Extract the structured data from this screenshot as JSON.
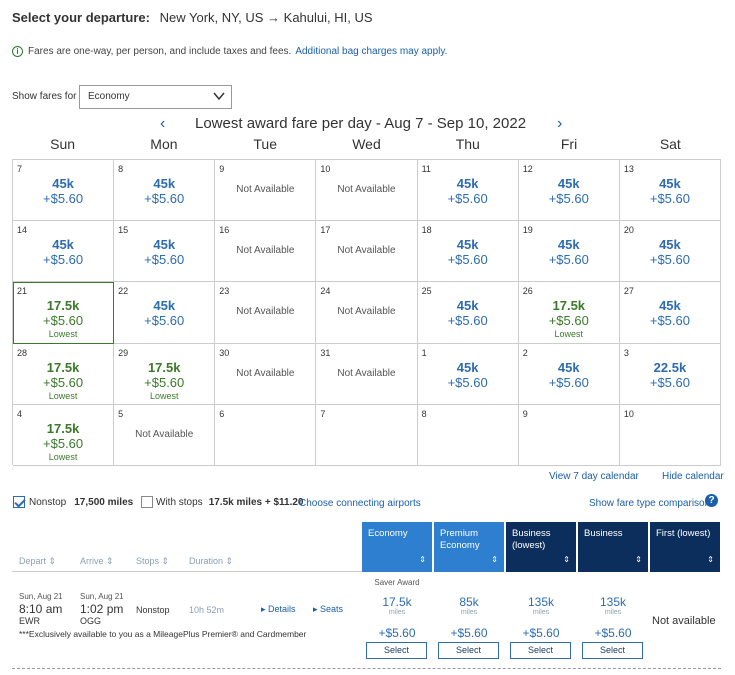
{
  "header": {
    "label": "Select your departure:",
    "route": "New York, NY, US → Kahului, HI, US"
  },
  "info": {
    "icon": "info-circle-icon",
    "text": "Fares are one-way, per person, and include taxes and fees.",
    "link": "Additional bag charges may apply."
  },
  "fare_filter": {
    "label": "Show fares for",
    "selected": "Economy"
  },
  "calendar": {
    "title": "Lowest award fare per day - Aug 7 - Sep 10, 2022",
    "days_of_week": [
      "Sun",
      "Mon",
      "Tue",
      "Wed",
      "Thu",
      "Fri",
      "Sat"
    ],
    "cells": [
      {
        "day": "7",
        "miles": "45k",
        "price": "+$5.60",
        "type": "fare"
      },
      {
        "day": "8",
        "miles": "45k",
        "price": "+$5.60",
        "type": "fare"
      },
      {
        "day": "9",
        "text": "Not Available",
        "type": "na"
      },
      {
        "day": "10",
        "text": "Not Available",
        "type": "na"
      },
      {
        "day": "11",
        "miles": "45k",
        "price": "+$5.60",
        "type": "fare"
      },
      {
        "day": "12",
        "miles": "45k",
        "price": "+$5.60",
        "type": "fare"
      },
      {
        "day": "13",
        "miles": "45k",
        "price": "+$5.60",
        "type": "fare"
      },
      {
        "day": "14",
        "miles": "45k",
        "price": "+$5.60",
        "type": "fare"
      },
      {
        "day": "15",
        "miles": "45k",
        "price": "+$5.60",
        "type": "fare"
      },
      {
        "day": "16",
        "text": "Not Available",
        "type": "na"
      },
      {
        "day": "17",
        "text": "Not Available",
        "type": "na"
      },
      {
        "day": "18",
        "miles": "45k",
        "price": "+$5.60",
        "type": "fare"
      },
      {
        "day": "19",
        "miles": "45k",
        "price": "+$5.60",
        "type": "fare"
      },
      {
        "day": "20",
        "miles": "45k",
        "price": "+$5.60",
        "type": "fare"
      },
      {
        "day": "21",
        "miles": "17.5k",
        "price": "+$5.60",
        "tag": "Lowest",
        "type": "low",
        "selected": true
      },
      {
        "day": "22",
        "miles": "45k",
        "price": "+$5.60",
        "type": "fare"
      },
      {
        "day": "23",
        "text": "Not Available",
        "type": "na"
      },
      {
        "day": "24",
        "text": "Not Available",
        "type": "na"
      },
      {
        "day": "25",
        "miles": "45k",
        "price": "+$5.60",
        "type": "fare"
      },
      {
        "day": "26",
        "miles": "17.5k",
        "price": "+$5.60",
        "tag": "Lowest",
        "type": "low"
      },
      {
        "day": "27",
        "miles": "45k",
        "price": "+$5.60",
        "type": "fare"
      },
      {
        "day": "28",
        "miles": "17.5k",
        "price": "+$5.60",
        "tag": "Lowest",
        "type": "low"
      },
      {
        "day": "29",
        "miles": "17.5k",
        "price": "+$5.60",
        "tag": "Lowest",
        "type": "low"
      },
      {
        "day": "30",
        "text": "Not Available",
        "type": "na"
      },
      {
        "day": "31",
        "text": "Not Available",
        "type": "na"
      },
      {
        "day": "1",
        "miles": "45k",
        "price": "+$5.60",
        "type": "fare"
      },
      {
        "day": "2",
        "miles": "45k",
        "price": "+$5.60",
        "type": "fare"
      },
      {
        "day": "3",
        "miles": "22.5k",
        "price": "+$5.60",
        "type": "fare"
      },
      {
        "day": "4",
        "miles": "17.5k",
        "price": "+$5.60",
        "tag": "Lowest",
        "type": "low"
      },
      {
        "day": "5",
        "text": "Not Available",
        "type": "na"
      },
      {
        "day": "6",
        "type": "empty"
      },
      {
        "day": "7",
        "type": "empty"
      },
      {
        "day": "8",
        "type": "empty"
      },
      {
        "day": "9",
        "type": "empty"
      },
      {
        "day": "10",
        "type": "empty"
      }
    ],
    "view7": "View 7 day calendar",
    "hide": "Hide calendar"
  },
  "filters": {
    "nonstop_label": "Nonstop",
    "nonstop_value": "17,500 miles",
    "withstops_label": "With stops",
    "withstops_value": "17.5k miles + $11.20",
    "connecting": "Choose connecting airports",
    "compare": "Show fare type comparison"
  },
  "columns": {
    "depart": "Depart",
    "arrive": "Arrive",
    "stops": "Stops",
    "duration": "Duration",
    "economy": "Economy",
    "premium": "Premium Economy",
    "business_lowest": "Business (lowest)",
    "business": "Business",
    "first": "First (lowest)",
    "sort_icon": "sort-arrows-icon"
  },
  "flight": {
    "saver": "Saver Award",
    "dep_date": "Sun, Aug 21",
    "dep_time": "8:10 am",
    "dep_airport": "EWR",
    "arr_date": "Sun, Aug 21",
    "arr_time": "1:02 pm",
    "arr_airport": "OGG",
    "stops": "Nonstop",
    "duration": "10h 52m",
    "details": "Details",
    "seats": "Seats",
    "exclusive": "***Exclusively available to you as a MileagePlus Premier® and Cardmember",
    "fares": [
      {
        "miles": "17.5k",
        "unit": "miles",
        "price": "+$5.60",
        "button": "Select"
      },
      {
        "miles": "85k",
        "unit": "miles",
        "price": "+$5.60",
        "button": "Select"
      },
      {
        "miles": "135k",
        "unit": "miles",
        "price": "+$5.60",
        "button": "Select"
      },
      {
        "miles": "135k",
        "unit": "miles",
        "price": "+$5.60",
        "button": "Select"
      }
    ],
    "first_status": "Not available"
  },
  "colors": {
    "link": "#1a5fa8",
    "fare": "#2d6cb0",
    "lowest": "#3b7a2a",
    "economy_header": "#2e7fd0",
    "premium_header": "#0c2e5c"
  }
}
